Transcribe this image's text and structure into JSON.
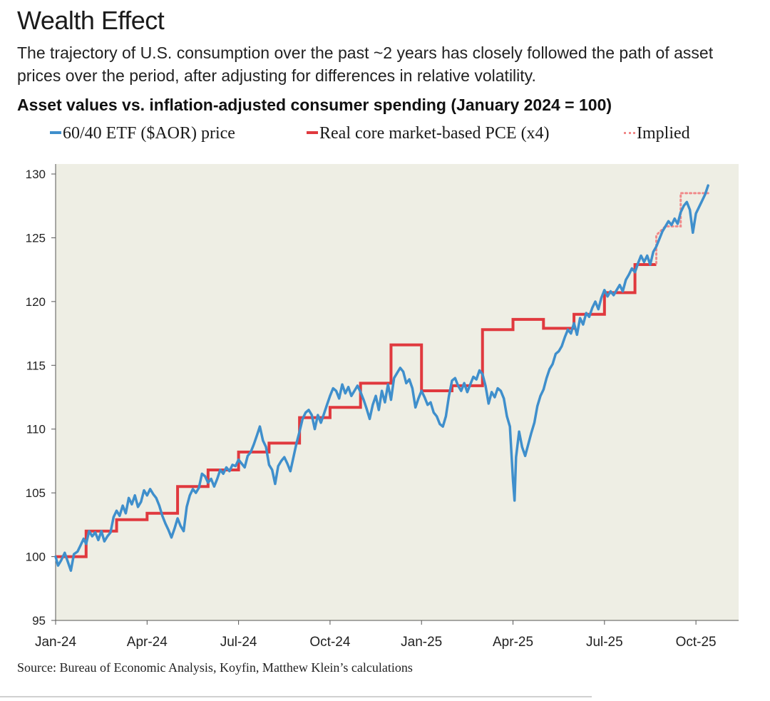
{
  "title": "Wealth Effect",
  "subtitle": "The trajectory of U.S. consumption over the past ~2 years has closely followed the path of asset prices over the period, after adjusting for differences in relative volatility.",
  "chart_heading": "Asset values vs. inflation-adjusted consumer spending (January 2024 = 100)",
  "legend": [
    {
      "label": "60/40 ETF ($AOR) price",
      "color": "#3f8fcc",
      "style": "solid"
    },
    {
      "label": "Real core market-based PCE (x4)",
      "color": "#e0393e",
      "style": "solid"
    },
    {
      "label": "Implied",
      "color": "#f08a8a",
      "style": "dotted"
    }
  ],
  "source": "Source: Bureau of Economic Analysis, Koyfin, Matthew Klein’s calculations",
  "colors": {
    "plot_background": "#eeeee4",
    "etf": "#3f8fcc",
    "pce": "#e0393e",
    "implied": "#f08a8a"
  },
  "chart_data": {
    "type": "line",
    "title": "Asset values vs. inflation-adjusted consumer spending (January 2024 = 100)",
    "xlabel": "",
    "ylabel": "",
    "ylim": [
      95,
      130
    ],
    "xlim": [
      0,
      22.4
    ],
    "yticks": [
      95,
      100,
      105,
      110,
      115,
      120,
      125,
      130
    ],
    "xticks": [
      {
        "x": 0,
        "label": "Jan-24"
      },
      {
        "x": 3,
        "label": "Apr-24"
      },
      {
        "x": 6,
        "label": "Jul-24"
      },
      {
        "x": 9,
        "label": "Oct-24"
      },
      {
        "x": 12,
        "label": "Jan-25"
      },
      {
        "x": 15,
        "label": "Apr-25"
      },
      {
        "x": 18,
        "label": "Jul-25"
      },
      {
        "x": 21,
        "label": "Oct-25"
      }
    ],
    "x_unit": "months since Jan 2024",
    "series": [
      {
        "name": "60/40 ETF ($AOR) price",
        "style": "line",
        "points": [
          [
            0,
            100
          ],
          [
            0.08,
            99.3
          ],
          [
            0.18,
            99.7
          ],
          [
            0.3,
            100.3
          ],
          [
            0.4,
            99.6
          ],
          [
            0.5,
            98.9
          ],
          [
            0.6,
            100.2
          ],
          [
            0.72,
            100.4
          ],
          [
            0.82,
            100.9
          ],
          [
            0.92,
            101.4
          ],
          [
            1.0,
            101.0
          ],
          [
            1.1,
            102.0
          ],
          [
            1.2,
            101.6
          ],
          [
            1.3,
            101.9
          ],
          [
            1.4,
            101.3
          ],
          [
            1.5,
            102.0
          ],
          [
            1.6,
            101.2
          ],
          [
            1.7,
            101.6
          ],
          [
            1.8,
            101.9
          ],
          [
            1.9,
            103.1
          ],
          [
            2.0,
            103.6
          ],
          [
            2.1,
            103.2
          ],
          [
            2.2,
            104.0
          ],
          [
            2.3,
            103.4
          ],
          [
            2.4,
            104.6
          ],
          [
            2.5,
            104.1
          ],
          [
            2.6,
            104.8
          ],
          [
            2.7,
            103.9
          ],
          [
            2.8,
            104.3
          ],
          [
            2.9,
            105.2
          ],
          [
            3.0,
            104.8
          ],
          [
            3.1,
            105.3
          ],
          [
            3.2,
            104.9
          ],
          [
            3.3,
            104.6
          ],
          [
            3.4,
            104.0
          ],
          [
            3.5,
            103.2
          ],
          [
            3.6,
            102.6
          ],
          [
            3.7,
            102.1
          ],
          [
            3.8,
            101.5
          ],
          [
            3.9,
            102.2
          ],
          [
            4.0,
            103.0
          ],
          [
            4.1,
            102.4
          ],
          [
            4.2,
            102.0
          ],
          [
            4.3,
            103.9
          ],
          [
            4.4,
            104.8
          ],
          [
            4.5,
            105.3
          ],
          [
            4.6,
            105.0
          ],
          [
            4.7,
            105.4
          ],
          [
            4.8,
            106.5
          ],
          [
            4.9,
            106.3
          ],
          [
            5.0,
            105.8
          ],
          [
            5.1,
            106.1
          ],
          [
            5.2,
            105.5
          ],
          [
            5.3,
            106.1
          ],
          [
            5.4,
            106.8
          ],
          [
            5.5,
            106.5
          ],
          [
            5.6,
            107.0
          ],
          [
            5.7,
            106.7
          ],
          [
            5.8,
            107.2
          ],
          [
            5.9,
            107.1
          ],
          [
            6.0,
            107.6
          ],
          [
            6.1,
            107.3
          ],
          [
            6.2,
            107.0
          ],
          [
            6.3,
            107.9
          ],
          [
            6.4,
            108.2
          ],
          [
            6.5,
            108.8
          ],
          [
            6.6,
            109.5
          ],
          [
            6.7,
            110.2
          ],
          [
            6.8,
            109.1
          ],
          [
            6.9,
            108.6
          ],
          [
            7.0,
            107.2
          ],
          [
            7.1,
            106.8
          ],
          [
            7.2,
            105.7
          ],
          [
            7.3,
            107.1
          ],
          [
            7.4,
            107.5
          ],
          [
            7.5,
            107.8
          ],
          [
            7.6,
            107.3
          ],
          [
            7.7,
            106.7
          ],
          [
            7.8,
            107.8
          ],
          [
            7.9,
            108.9
          ],
          [
            8.0,
            109.8
          ],
          [
            8.1,
            110.8
          ],
          [
            8.2,
            111.3
          ],
          [
            8.3,
            111.5
          ],
          [
            8.4,
            111.1
          ],
          [
            8.5,
            110.0
          ],
          [
            8.6,
            111.1
          ],
          [
            8.7,
            110.5
          ],
          [
            8.8,
            111.2
          ],
          [
            8.9,
            111.9
          ],
          [
            9.0,
            112.6
          ],
          [
            9.1,
            113.2
          ],
          [
            9.2,
            113.0
          ],
          [
            9.3,
            112.4
          ],
          [
            9.4,
            113.5
          ],
          [
            9.5,
            112.8
          ],
          [
            9.6,
            113.3
          ],
          [
            9.7,
            112.6
          ],
          [
            9.8,
            113.0
          ],
          [
            9.9,
            113.4
          ],
          [
            10.0,
            112.9
          ],
          [
            10.1,
            112.3
          ],
          [
            10.2,
            111.6
          ],
          [
            10.3,
            110.8
          ],
          [
            10.4,
            111.9
          ],
          [
            10.5,
            112.6
          ],
          [
            10.6,
            111.5
          ],
          [
            10.7,
            113.0
          ],
          [
            10.8,
            112.1
          ],
          [
            10.9,
            113.5
          ],
          [
            11.0,
            112.3
          ],
          [
            11.1,
            114.0
          ],
          [
            11.2,
            114.4
          ],
          [
            11.3,
            114.8
          ],
          [
            11.4,
            114.5
          ],
          [
            11.5,
            113.6
          ],
          [
            11.6,
            113.9
          ],
          [
            11.7,
            113.2
          ],
          [
            11.8,
            111.7
          ],
          [
            11.9,
            112.4
          ],
          [
            12.0,
            113.0
          ],
          [
            12.1,
            112.5
          ],
          [
            12.2,
            111.9
          ],
          [
            12.3,
            112.1
          ],
          [
            12.4,
            111.3
          ],
          [
            12.5,
            111.0
          ],
          [
            12.6,
            110.4
          ],
          [
            12.7,
            110.2
          ],
          [
            12.8,
            111.0
          ],
          [
            12.9,
            112.6
          ],
          [
            13.0,
            113.8
          ],
          [
            13.1,
            114.0
          ],
          [
            13.2,
            113.4
          ],
          [
            13.3,
            113.0
          ],
          [
            13.4,
            113.6
          ],
          [
            13.5,
            112.9
          ],
          [
            13.6,
            113.5
          ],
          [
            13.7,
            114.1
          ],
          [
            13.8,
            113.9
          ],
          [
            13.9,
            114.6
          ],
          [
            14.0,
            114.3
          ],
          [
            14.1,
            113.4
          ],
          [
            14.2,
            112.0
          ],
          [
            14.3,
            112.9
          ],
          [
            14.4,
            112.5
          ],
          [
            14.5,
            113.2
          ],
          [
            14.6,
            113.0
          ],
          [
            14.7,
            112.4
          ],
          [
            14.8,
            111.0
          ],
          [
            14.9,
            110.2
          ],
          [
            15.0,
            106.0
          ],
          [
            15.05,
            104.4
          ],
          [
            15.1,
            107.8
          ],
          [
            15.2,
            109.8
          ],
          [
            15.3,
            108.6
          ],
          [
            15.4,
            107.9
          ],
          [
            15.5,
            108.8
          ],
          [
            15.6,
            109.7
          ],
          [
            15.7,
            110.5
          ],
          [
            15.8,
            111.8
          ],
          [
            15.9,
            112.6
          ],
          [
            16.0,
            113.1
          ],
          [
            16.1,
            114.0
          ],
          [
            16.2,
            114.7
          ],
          [
            16.3,
            115.1
          ],
          [
            16.4,
            115.9
          ],
          [
            16.5,
            116.1
          ],
          [
            16.6,
            116.5
          ],
          [
            16.7,
            117.2
          ],
          [
            16.8,
            117.8
          ],
          [
            16.9,
            117.5
          ],
          [
            17.0,
            118.3
          ],
          [
            17.1,
            117.4
          ],
          [
            17.2,
            118.7
          ],
          [
            17.3,
            118.2
          ],
          [
            17.4,
            119.1
          ],
          [
            17.5,
            118.8
          ],
          [
            17.6,
            119.5
          ],
          [
            17.7,
            120.0
          ],
          [
            17.8,
            119.4
          ],
          [
            17.9,
            120.3
          ],
          [
            18.0,
            120.9
          ],
          [
            18.1,
            120.4
          ],
          [
            18.2,
            120.8
          ],
          [
            18.3,
            120.5
          ],
          [
            18.4,
            120.9
          ],
          [
            18.5,
            121.3
          ],
          [
            18.6,
            120.8
          ],
          [
            18.7,
            121.7
          ],
          [
            18.8,
            122.1
          ],
          [
            18.9,
            122.6
          ],
          [
            19.0,
            122.3
          ],
          [
            19.1,
            123.0
          ],
          [
            19.2,
            123.6
          ],
          [
            19.3,
            123.1
          ],
          [
            19.4,
            123.6
          ],
          [
            19.5,
            122.9
          ],
          [
            19.6,
            123.9
          ],
          [
            19.7,
            124.3
          ],
          [
            19.8,
            124.9
          ],
          [
            19.9,
            125.5
          ],
          [
            20.0,
            125.9
          ],
          [
            20.1,
            126.3
          ],
          [
            20.2,
            126.0
          ],
          [
            20.3,
            126.5
          ],
          [
            20.4,
            126.1
          ],
          [
            20.5,
            127.0
          ],
          [
            20.6,
            127.5
          ],
          [
            20.7,
            127.8
          ],
          [
            20.8,
            127.2
          ],
          [
            20.9,
            125.4
          ],
          [
            21.0,
            126.9
          ],
          [
            21.1,
            127.4
          ],
          [
            21.2,
            127.9
          ],
          [
            21.3,
            128.4
          ],
          [
            21.4,
            129.1
          ]
        ]
      },
      {
        "name": "Real core market-based PCE (x4)",
        "style": "step",
        "points": [
          [
            0,
            100.0
          ],
          [
            1,
            102.0
          ],
          [
            2,
            102.9
          ],
          [
            3,
            103.4
          ],
          [
            4,
            105.5
          ],
          [
            5,
            106.8
          ],
          [
            6,
            108.2
          ],
          [
            7,
            108.9
          ],
          [
            8,
            110.9
          ],
          [
            9,
            111.7
          ],
          [
            10,
            113.6
          ],
          [
            11,
            116.6
          ],
          [
            12,
            113.0
          ],
          [
            13,
            113.4
          ],
          [
            14,
            117.8
          ],
          [
            15,
            118.6
          ],
          [
            16,
            117.9
          ],
          [
            17,
            119.0
          ],
          [
            18,
            120.7
          ],
          [
            19,
            122.9
          ],
          [
            19.7,
            122.9
          ]
        ]
      },
      {
        "name": "Implied",
        "style": "dotted-step",
        "points": [
          [
            19.7,
            123.0
          ],
          [
            19.7,
            125.2
          ],
          [
            20.0,
            125.9
          ],
          [
            20.5,
            125.9
          ],
          [
            20.5,
            128.5
          ],
          [
            21.4,
            128.5
          ]
        ]
      }
    ]
  }
}
